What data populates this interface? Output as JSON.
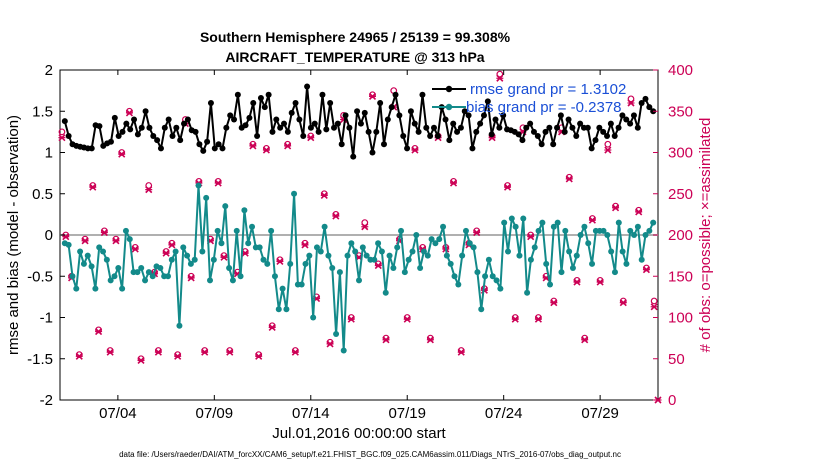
{
  "chart_data": {
    "type": "line",
    "title_line1": "Southern Hemisphere 24965 / 25139 = 99.308%",
    "title_line2": "AIRCRAFT_TEMPERATURE @ 313 hPa",
    "xlabel": "Jul.01,2016 00:00:00 start",
    "ylabel": "rmse and bias (model - observation)",
    "ylabel_right": "# of obs: o=possible; ×=assimilated",
    "footnote": "data file: /Users/raeder/DAI/ATM_forcXX/CAM6_setup/f.e21.FHIST_BGC.f09_025.CAM6assim.011/Diags_NTrS_2016-07/obs_diag_output.nc",
    "x_range": [
      1,
      32
    ],
    "ylim": [
      -2,
      2
    ],
    "ylim_right": [
      0,
      400
    ],
    "y_ticks": [
      "-2",
      "-1.5",
      "-1",
      "-0.5",
      "0",
      "0.5",
      "1",
      "1.5",
      "2"
    ],
    "y_tick_values": [
      -2,
      -1.5,
      -1,
      -0.5,
      0,
      0.5,
      1,
      1.5,
      2
    ],
    "y_right_ticks": [
      "0",
      "50",
      "100",
      "150",
      "200",
      "250",
      "300",
      "350",
      "400"
    ],
    "y_right_tick_values": [
      0,
      50,
      100,
      150,
      200,
      250,
      300,
      350,
      400
    ],
    "x_ticks": [
      "07/04",
      "07/09",
      "07/14",
      "07/19",
      "07/24",
      "07/29"
    ],
    "x_tick_values": [
      4,
      9,
      14,
      19,
      24,
      29
    ],
    "colors": {
      "rmse": "#000000",
      "bias": "#138a8a",
      "obs": "#cc0055",
      "zero_line": "#b0b0b0",
      "legend_text": "#1a4fd6"
    },
    "series": [
      {
        "name": "rmse grand pr = 1.3102",
        "values": [
          1.38,
          1.2,
          1.1,
          1.08,
          1.07,
          1.06,
          1.05,
          1.05,
          1.33,
          1.32,
          1.08,
          1.11,
          1.13,
          1.42,
          1.2,
          1.25,
          1.35,
          1.28,
          1.4,
          1.22,
          1.3,
          1.5,
          1.3,
          1.2,
          1.15,
          1.05,
          1.3,
          1.4,
          1.2,
          1.3,
          1.15,
          1.35,
          1.4,
          1.27,
          1.25,
          1.1,
          1.02,
          1.13,
          1.6,
          1.05,
          1.1,
          1.05,
          1.3,
          1.45,
          1.4,
          1.7,
          1.3,
          1.33,
          1.42,
          1.6,
          1.2,
          1.66,
          1.55,
          1.7,
          1.25,
          1.4,
          1.3,
          1.35,
          1.25,
          1.48,
          1.6,
          1.4,
          1.2,
          1.8,
          1.3,
          1.35,
          1.25,
          1.7,
          1.28,
          1.6,
          1.3,
          1.35,
          1.1,
          1.45,
          1.3,
          0.95,
          1.5,
          1.35,
          1.48,
          1.25,
          1.0,
          1.25,
          1.6,
          1.1,
          1.4,
          1.55,
          1.7,
          1.45,
          1.2,
          1.05,
          1.5,
          1.35,
          1.25,
          1.7,
          1.3,
          1.2,
          1.3,
          1.2,
          1.55,
          1.4,
          1.15,
          1.35,
          1.25,
          1.3,
          1.5,
          1.45,
          1.05,
          1.25,
          1.35,
          1.45,
          1.62,
          1.22,
          1.4,
          1.3,
          1.45,
          1.28,
          1.27,
          1.25,
          1.22,
          1.15,
          1.3,
          1.35,
          1.25,
          1.2,
          1.1,
          1.25,
          1.3,
          1.1,
          1.3,
          1.45,
          1.25,
          1.4,
          1.3,
          1.2,
          1.35,
          1.3,
          1.3,
          1.05,
          1.15,
          1.3,
          1.25,
          1.2,
          1.35,
          1.2,
          1.3,
          1.45,
          1.4,
          1.35,
          1.45,
          1.3,
          1.6,
          1.65,
          1.55,
          1.5
        ]
      },
      {
        "name": "bias grand pr = -0.2378",
        "values": [
          -0.1,
          -0.12,
          -0.5,
          -0.65,
          -0.2,
          -0.35,
          -0.25,
          -0.38,
          -0.65,
          -0.15,
          -0.2,
          -0.3,
          -0.55,
          -0.5,
          -0.4,
          -0.65,
          0.05,
          -0.05,
          -0.45,
          -0.45,
          -0.4,
          -0.55,
          -0.45,
          -0.5,
          -0.38,
          -0.4,
          -0.5,
          -0.5,
          -0.3,
          -0.2,
          -1.1,
          -0.15,
          -0.25,
          -0.35,
          -0.3,
          0.6,
          -0.2,
          0.45,
          -0.55,
          -0.3,
          0.05,
          -0.1,
          0.35,
          -0.4,
          -0.55,
          0.05,
          -0.5,
          0.3,
          -0.1,
          0.1,
          -0.15,
          -0.15,
          -0.3,
          -0.35,
          0.05,
          -0.5,
          -0.9,
          -0.65,
          -0.9,
          -0.35,
          0.5,
          -0.6,
          -0.6,
          -0.35,
          -0.25,
          -1.0,
          -0.15,
          -0.2,
          0.1,
          -0.25,
          -0.4,
          -1.2,
          -0.45,
          -1.4,
          -0.25,
          -0.1,
          -0.2,
          -0.55,
          -0.15,
          -0.25,
          -0.3,
          -0.3,
          -0.1,
          -0.2,
          -0.7,
          -0.25,
          -0.4,
          -0.15,
          0.05,
          -0.45,
          -0.3,
          -0.2,
          0.0,
          -0.4,
          -0.2,
          -0.25,
          -0.05,
          -0.1,
          -0.05,
          0.1,
          -0.25,
          -0.35,
          -0.5,
          -0.6,
          -0.25,
          0.05,
          -0.1,
          -0.15,
          -0.45,
          -0.9,
          -0.5,
          -0.3,
          -0.5,
          -0.55,
          -0.65,
          0.15,
          -0.2,
          0.2,
          0.1,
          -0.25,
          0.2,
          -0.7,
          -0.3,
          -0.15,
          0.05,
          0.15,
          -0.35,
          -0.6,
          0.1,
          0.15,
          -0.45,
          0.05,
          -0.2,
          -0.4,
          -0.25,
          0.0,
          0.1,
          -0.1,
          -0.35,
          0.05,
          0.05,
          0.05,
          0.0,
          -0.2,
          -0.45,
          0.15,
          -0.2,
          -0.35,
          0.05,
          0.0,
          0.1,
          -0.3,
          0.0,
          0.05,
          0.15
        ]
      }
    ],
    "obs_possible": [
      {
        "t": 1.1,
        "v": 325
      },
      {
        "t": 1.3,
        "v": 200
      },
      {
        "t": 1.6,
        "v": 150
      },
      {
        "t": 2.0,
        "v": 55
      },
      {
        "t": 2.3,
        "v": 195
      },
      {
        "t": 2.7,
        "v": 260
      },
      {
        "t": 3.0,
        "v": 85
      },
      {
        "t": 3.3,
        "v": 205
      },
      {
        "t": 3.6,
        "v": 60
      },
      {
        "t": 3.9,
        "v": 195
      },
      {
        "t": 4.2,
        "v": 300
      },
      {
        "t": 4.6,
        "v": 350
      },
      {
        "t": 4.9,
        "v": 185
      },
      {
        "t": 5.2,
        "v": 50
      },
      {
        "t": 5.6,
        "v": 260
      },
      {
        "t": 5.9,
        "v": 155
      },
      {
        "t": 6.1,
        "v": 60
      },
      {
        "t": 6.5,
        "v": 180
      },
      {
        "t": 6.8,
        "v": 190
      },
      {
        "t": 7.1,
        "v": 55
      },
      {
        "t": 7.5,
        "v": 340
      },
      {
        "t": 7.8,
        "v": 150
      },
      {
        "t": 8.2,
        "v": 265
      },
      {
        "t": 8.5,
        "v": 60
      },
      {
        "t": 8.8,
        "v": 195
      },
      {
        "t": 9.2,
        "v": 265
      },
      {
        "t": 9.5,
        "v": 175
      },
      {
        "t": 9.8,
        "v": 60
      },
      {
        "t": 10.2,
        "v": 155
      },
      {
        "t": 10.6,
        "v": 180
      },
      {
        "t": 11.0,
        "v": 310
      },
      {
        "t": 11.3,
        "v": 55
      },
      {
        "t": 11.7,
        "v": 305
      },
      {
        "t": 12.0,
        "v": 90
      },
      {
        "t": 12.4,
        "v": 170
      },
      {
        "t": 12.8,
        "v": 310
      },
      {
        "t": 13.2,
        "v": 60
      },
      {
        "t": 13.7,
        "v": 190
      },
      {
        "t": 14.0,
        "v": 320
      },
      {
        "t": 14.3,
        "v": 125
      },
      {
        "t": 14.7,
        "v": 250
      },
      {
        "t": 15.0,
        "v": 70
      },
      {
        "t": 15.3,
        "v": 225
      },
      {
        "t": 15.7,
        "v": 345
      },
      {
        "t": 16.1,
        "v": 100
      },
      {
        "t": 16.5,
        "v": 175
      },
      {
        "t": 16.8,
        "v": 215
      },
      {
        "t": 17.2,
        "v": 370
      },
      {
        "t": 17.5,
        "v": 165
      },
      {
        "t": 17.9,
        "v": 75
      },
      {
        "t": 18.3,
        "v": 375
      },
      {
        "t": 18.6,
        "v": 195
      },
      {
        "t": 19.0,
        "v": 100
      },
      {
        "t": 19.4,
        "v": 305
      },
      {
        "t": 19.8,
        "v": 185
      },
      {
        "t": 20.2,
        "v": 75
      },
      {
        "t": 20.6,
        "v": 320
      },
      {
        "t": 21.0,
        "v": 185
      },
      {
        "t": 21.4,
        "v": 265
      },
      {
        "t": 21.8,
        "v": 60
      },
      {
        "t": 22.2,
        "v": 190
      },
      {
        "t": 22.6,
        "v": 205
      },
      {
        "t": 23.0,
        "v": 135
      },
      {
        "t": 23.4,
        "v": 320
      },
      {
        "t": 23.8,
        "v": 395
      },
      {
        "t": 24.2,
        "v": 260
      },
      {
        "t": 24.6,
        "v": 100
      },
      {
        "t": 25.0,
        "v": 330
      },
      {
        "t": 25.4,
        "v": 200
      },
      {
        "t": 25.8,
        "v": 100
      },
      {
        "t": 26.2,
        "v": 150
      },
      {
        "t": 26.6,
        "v": 120
      },
      {
        "t": 27.0,
        "v": 330
      },
      {
        "t": 27.4,
        "v": 270
      },
      {
        "t": 27.8,
        "v": 145
      },
      {
        "t": 28.2,
        "v": 75
      },
      {
        "t": 28.6,
        "v": 220
      },
      {
        "t": 29.0,
        "v": 145
      },
      {
        "t": 29.4,
        "v": 310
      },
      {
        "t": 29.8,
        "v": 235
      },
      {
        "t": 30.2,
        "v": 120
      },
      {
        "t": 30.6,
        "v": 365
      },
      {
        "t": 31.0,
        "v": 230
      },
      {
        "t": 31.4,
        "v": 160
      },
      {
        "t": 31.8,
        "v": 120
      }
    ],
    "obs_assimilated": [
      {
        "t": 1.1,
        "v": 318
      },
      {
        "t": 1.3,
        "v": 198
      },
      {
        "t": 1.6,
        "v": 148
      },
      {
        "t": 2.0,
        "v": 53
      },
      {
        "t": 2.3,
        "v": 193
      },
      {
        "t": 2.7,
        "v": 258
      },
      {
        "t": 3.0,
        "v": 83
      },
      {
        "t": 3.3,
        "v": 203
      },
      {
        "t": 3.6,
        "v": 58
      },
      {
        "t": 3.9,
        "v": 193
      },
      {
        "t": 4.2,
        "v": 298
      },
      {
        "t": 4.6,
        "v": 348
      },
      {
        "t": 4.9,
        "v": 183
      },
      {
        "t": 5.2,
        "v": 48
      },
      {
        "t": 5.6,
        "v": 255
      },
      {
        "t": 5.9,
        "v": 153
      },
      {
        "t": 6.1,
        "v": 58
      },
      {
        "t": 6.5,
        "v": 178
      },
      {
        "t": 6.8,
        "v": 188
      },
      {
        "t": 7.1,
        "v": 53
      },
      {
        "t": 7.5,
        "v": 335
      },
      {
        "t": 7.8,
        "v": 148
      },
      {
        "t": 8.2,
        "v": 263
      },
      {
        "t": 8.5,
        "v": 58
      },
      {
        "t": 8.8,
        "v": 193
      },
      {
        "t": 9.2,
        "v": 263
      },
      {
        "t": 9.5,
        "v": 173
      },
      {
        "t": 9.8,
        "v": 58
      },
      {
        "t": 10.2,
        "v": 153
      },
      {
        "t": 10.6,
        "v": 178
      },
      {
        "t": 11.0,
        "v": 308
      },
      {
        "t": 11.3,
        "v": 53
      },
      {
        "t": 11.7,
        "v": 303
      },
      {
        "t": 12.0,
        "v": 88
      },
      {
        "t": 12.4,
        "v": 168
      },
      {
        "t": 12.8,
        "v": 308
      },
      {
        "t": 13.2,
        "v": 58
      },
      {
        "t": 13.7,
        "v": 188
      },
      {
        "t": 14.0,
        "v": 318
      },
      {
        "t": 14.3,
        "v": 123
      },
      {
        "t": 14.7,
        "v": 248
      },
      {
        "t": 15.0,
        "v": 68
      },
      {
        "t": 15.3,
        "v": 223
      },
      {
        "t": 15.7,
        "v": 340
      },
      {
        "t": 16.1,
        "v": 98
      },
      {
        "t": 16.5,
        "v": 173
      },
      {
        "t": 16.8,
        "v": 210
      },
      {
        "t": 17.2,
        "v": 368
      },
      {
        "t": 17.5,
        "v": 163
      },
      {
        "t": 17.9,
        "v": 73
      },
      {
        "t": 18.3,
        "v": 355
      },
      {
        "t": 18.6,
        "v": 193
      },
      {
        "t": 19.0,
        "v": 98
      },
      {
        "t": 19.4,
        "v": 303
      },
      {
        "t": 19.8,
        "v": 183
      },
      {
        "t": 20.2,
        "v": 73
      },
      {
        "t": 20.6,
        "v": 318
      },
      {
        "t": 21.0,
        "v": 183
      },
      {
        "t": 21.4,
        "v": 263
      },
      {
        "t": 21.8,
        "v": 58
      },
      {
        "t": 22.2,
        "v": 188
      },
      {
        "t": 22.6,
        "v": 203
      },
      {
        "t": 23.0,
        "v": 133
      },
      {
        "t": 23.4,
        "v": 318
      },
      {
        "t": 23.8,
        "v": 390
      },
      {
        "t": 24.2,
        "v": 258
      },
      {
        "t": 24.6,
        "v": 98
      },
      {
        "t": 25.0,
        "v": 325
      },
      {
        "t": 25.4,
        "v": 198
      },
      {
        "t": 25.8,
        "v": 98
      },
      {
        "t": 26.2,
        "v": 148
      },
      {
        "t": 26.6,
        "v": 118
      },
      {
        "t": 27.0,
        "v": 325
      },
      {
        "t": 27.4,
        "v": 268
      },
      {
        "t": 27.8,
        "v": 143
      },
      {
        "t": 28.2,
        "v": 73
      },
      {
        "t": 28.6,
        "v": 218
      },
      {
        "t": 29.0,
        "v": 143
      },
      {
        "t": 29.4,
        "v": 303
      },
      {
        "t": 29.8,
        "v": 233
      },
      {
        "t": 30.2,
        "v": 118
      },
      {
        "t": 30.6,
        "v": 360
      },
      {
        "t": 31.0,
        "v": 228
      },
      {
        "t": 31.4,
        "v": 158
      },
      {
        "t": 31.8,
        "v": 113
      }
    ],
    "obs_extra_assimilated": [
      {
        "t": 32.0,
        "v": 0
      }
    ]
  }
}
